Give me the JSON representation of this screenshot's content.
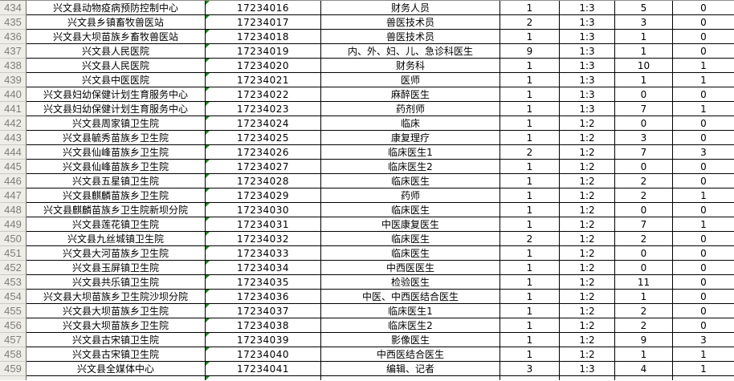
{
  "app": {
    "view": "spreadsheet-grid",
    "description": "Excel-like table of recruitment positions, rows 434-459"
  },
  "colors": {
    "grid_border": "#000000",
    "row_header_bg": "#efede8",
    "row_header_text": "#807e7a",
    "indicator_triangle_green": "#118a11",
    "cell_bg": "#ffffff",
    "cell_text": "#000000"
  },
  "table": {
    "has_partial_bottom_row": true,
    "rows": [
      {
        "row_number": "434",
        "org": "兴文县动物疫病预防控制中心",
        "code": "17234016",
        "position": "财务人员",
        "count_a": "1",
        "ratio": "1:3",
        "count_b": "5",
        "count_c": "0"
      },
      {
        "row_number": "435",
        "org": "兴文县乡镇畜牧兽医站",
        "code": "17234017",
        "position": "兽医技术员",
        "count_a": "2",
        "ratio": "1:3",
        "count_b": "3",
        "count_c": "0"
      },
      {
        "row_number": "436",
        "org": "兴文县大坝苗族乡畜牧兽医站",
        "code": "17234018",
        "position": "兽医技术员",
        "count_a": "1",
        "ratio": "1:3",
        "count_b": "1",
        "count_c": "0"
      },
      {
        "row_number": "437",
        "org": "兴文县人民医院",
        "code": "17234019",
        "position": "内、外、妇、儿、急诊科医生",
        "count_a": "9",
        "ratio": "1:3",
        "count_b": "1",
        "count_c": "0"
      },
      {
        "row_number": "438",
        "org": "兴文县人民医院",
        "code": "17234020",
        "position": "财务科",
        "count_a": "1",
        "ratio": "1:3",
        "count_b": "10",
        "count_c": "1"
      },
      {
        "row_number": "439",
        "org": "兴文县中医医院",
        "code": "17234021",
        "position": "医师",
        "count_a": "1",
        "ratio": "1:3",
        "count_b": "1",
        "count_c": "1"
      },
      {
        "row_number": "440",
        "org": "兴文县妇幼保健计划生育服务中心",
        "code": "17234022",
        "position": "麻醉医生",
        "count_a": "1",
        "ratio": "1:3",
        "count_b": "0",
        "count_c": "0"
      },
      {
        "row_number": "441",
        "org": "兴文县妇幼保健计划生育服务中心",
        "code": "17234023",
        "position": "药剂师",
        "count_a": "1",
        "ratio": "1:3",
        "count_b": "7",
        "count_c": "1"
      },
      {
        "row_number": "442",
        "org": "兴文县周家镇卫生院",
        "code": "17234024",
        "position": "临床",
        "count_a": "1",
        "ratio": "1:2",
        "count_b": "0",
        "count_c": "0"
      },
      {
        "row_number": "443",
        "org": "兴文县毓秀苗族乡卫生院",
        "code": "17234025",
        "position": "康复理疗",
        "count_a": "1",
        "ratio": "1:2",
        "count_b": "3",
        "count_c": "0"
      },
      {
        "row_number": "444",
        "org": "兴文县仙峰苗族乡卫生院",
        "code": "17234026",
        "position": "临床医生1",
        "count_a": "2",
        "ratio": "1:2",
        "count_b": "7",
        "count_c": "3"
      },
      {
        "row_number": "445",
        "org": "兴文县仙峰苗族乡卫生院",
        "code": "17234027",
        "position": "临床医生2",
        "count_a": "1",
        "ratio": "1:2",
        "count_b": "0",
        "count_c": "0"
      },
      {
        "row_number": "446",
        "org": "兴文县五星镇卫生院",
        "code": "17234028",
        "position": "临床医生",
        "count_a": "1",
        "ratio": "1:2",
        "count_b": "2",
        "count_c": "0"
      },
      {
        "row_number": "447",
        "org": "兴文县麒麟苗族乡卫生院",
        "code": "17234029",
        "position": "药师",
        "count_a": "1",
        "ratio": "1:2",
        "count_b": "2",
        "count_c": "1"
      },
      {
        "row_number": "448",
        "org": "兴文县麒麟苗族乡卫生院新坝分院",
        "code": "17234030",
        "position": "临床医生",
        "count_a": "1",
        "ratio": "1:2",
        "count_b": "0",
        "count_c": "0"
      },
      {
        "row_number": "449",
        "org": "兴文县莲花镇卫生院",
        "code": "17234031",
        "position": "中医康复医生",
        "count_a": "1",
        "ratio": "1:2",
        "count_b": "7",
        "count_c": "1"
      },
      {
        "row_number": "450",
        "org": "兴文县九丝城镇卫生院",
        "code": "17234032",
        "position": "临床医生",
        "count_a": "2",
        "ratio": "1:2",
        "count_b": "2",
        "count_c": "0"
      },
      {
        "row_number": "451",
        "org": "兴文县大河苗族乡卫生院",
        "code": "17234033",
        "position": "临床医生",
        "count_a": "1",
        "ratio": "1:2",
        "count_b": "0",
        "count_c": "0"
      },
      {
        "row_number": "452",
        "org": "兴文县玉屏镇卫生院",
        "code": "17234034",
        "position": "中西医医生",
        "count_a": "1",
        "ratio": "1:2",
        "count_b": "0",
        "count_c": "0"
      },
      {
        "row_number": "453",
        "org": "兴文县共乐镇卫生院",
        "code": "17234035",
        "position": "检验医生",
        "count_a": "1",
        "ratio": "1:2",
        "count_b": "11",
        "count_c": "0"
      },
      {
        "row_number": "454",
        "org": "兴文县大坝苗族乡卫生院沙坝分院",
        "code": "17234036",
        "position": "中医、中西医结合医生",
        "count_a": "1",
        "ratio": "1:2",
        "count_b": "1",
        "count_c": "0"
      },
      {
        "row_number": "455",
        "org": "兴文县大坝苗族乡卫生院",
        "code": "17234037",
        "position": "临床医生1",
        "count_a": "1",
        "ratio": "1:2",
        "count_b": "2",
        "count_c": "0"
      },
      {
        "row_number": "456",
        "org": "兴文县大坝苗族乡卫生院",
        "code": "17234038",
        "position": "临床医生2",
        "count_a": "1",
        "ratio": "1:2",
        "count_b": "2",
        "count_c": "0"
      },
      {
        "row_number": "457",
        "org": "兴文县古宋镇卫生院",
        "code": "17234039",
        "position": "影像医生",
        "count_a": "1",
        "ratio": "1:2",
        "count_b": "9",
        "count_c": "3"
      },
      {
        "row_number": "458",
        "org": "兴文县古宋镇卫生院",
        "code": "17234040",
        "position": "中西医结合医生",
        "count_a": "1",
        "ratio": "1:2",
        "count_b": "1",
        "count_c": "1"
      },
      {
        "row_number": "459",
        "org": "兴文县全媒体中心",
        "code": "17234041",
        "position": "编辑、记者",
        "count_a": "3",
        "ratio": "1:3",
        "count_b": "4",
        "count_c": "1"
      }
    ]
  }
}
